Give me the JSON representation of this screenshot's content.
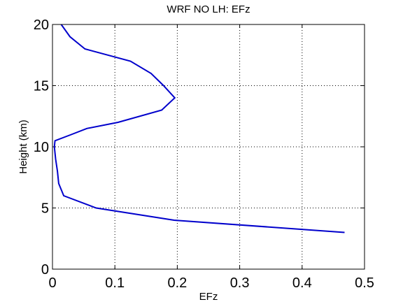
{
  "chart_data": {
    "type": "line",
    "title": "WRF NO LH: EFz",
    "xlabel": "EFz",
    "ylabel": "Height (km)",
    "xlim": [
      0,
      0.5
    ],
    "ylim": [
      0,
      20
    ],
    "xticks": [
      0,
      0.1,
      0.2,
      0.3,
      0.4,
      0.5
    ],
    "yticks": [
      0,
      5,
      10,
      15,
      20
    ],
    "xtick_labels": [
      "0",
      "0.1",
      "0.2",
      "0.3",
      "0.4",
      "0.5"
    ],
    "ytick_labels": [
      "0",
      "5",
      "10",
      "15",
      "20"
    ],
    "grid": true,
    "line_color": "#0000cc",
    "series": [
      {
        "x": [
          0.468,
          0.195,
          0.07,
          0.018,
          0.01,
          0.008,
          0.005,
          0.003,
          0.004,
          0.03,
          0.055,
          0.105,
          0.175,
          0.196,
          0.178,
          0.158,
          0.125,
          0.052,
          0.028,
          0.014
        ],
        "y": [
          3,
          4,
          5,
          6,
          7,
          8,
          9,
          10,
          10.5,
          11,
          11.5,
          12,
          13,
          14,
          15,
          16,
          17,
          18,
          19,
          20
        ]
      }
    ]
  }
}
